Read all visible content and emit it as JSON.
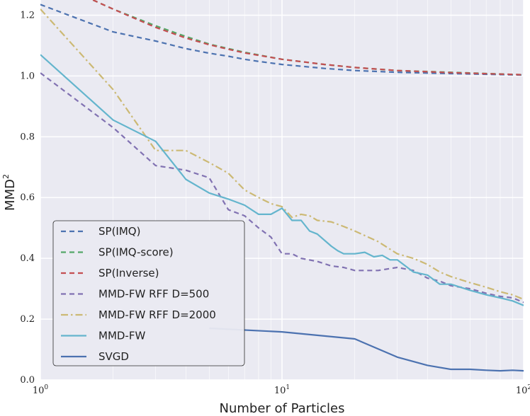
{
  "chart_data": {
    "type": "line",
    "title": "",
    "xlabel": "Number of Particles",
    "ylabel": "MMD",
    "ylabel_superscript": "2",
    "xscale": "log",
    "xlim": [
      1,
      100
    ],
    "ylim": [
      0.0,
      1.25
    ],
    "grid": true,
    "legend_position": "lower-left",
    "x_ticks": [
      {
        "value": 1,
        "base": "10",
        "exp": "0"
      },
      {
        "value": 10,
        "base": "10",
        "exp": "1"
      },
      {
        "value": 100,
        "base": "10",
        "exp": "2"
      }
    ],
    "y_ticks": [
      "0.0",
      "0.2",
      "0.4",
      "0.6",
      "0.8",
      "1.0",
      "1.2"
    ],
    "series": [
      {
        "name": "SP(IMQ)",
        "color": "#4c72b0",
        "dash": "dashed",
        "points": [
          [
            1,
            1.235
          ],
          [
            2,
            1.145
          ],
          [
            3,
            1.115
          ],
          [
            4,
            1.09
          ],
          [
            5,
            1.075
          ],
          [
            6,
            1.065
          ],
          [
            7,
            1.055
          ],
          [
            8,
            1.048
          ],
          [
            10,
            1.038
          ],
          [
            15,
            1.025
          ],
          [
            20,
            1.018
          ],
          [
            30,
            1.012
          ],
          [
            50,
            1.008
          ],
          [
            100,
            1.003
          ]
        ]
      },
      {
        "name": "SP(IMQ-score)",
        "color": "#55a868",
        "dash": "dashed",
        "points": [
          [
            1.65,
            1.25
          ],
          [
            2,
            1.22
          ],
          [
            3,
            1.165
          ],
          [
            4,
            1.13
          ],
          [
            5,
            1.105
          ],
          [
            6,
            1.09
          ],
          [
            7,
            1.078
          ],
          [
            10,
            1.055
          ],
          [
            15,
            1.038
          ],
          [
            20,
            1.028
          ],
          [
            30,
            1.018
          ],
          [
            50,
            1.012
          ],
          [
            100,
            1.004
          ]
        ]
      },
      {
        "name": "SP(Inverse)",
        "color": "#c44e52",
        "dash": "dashed",
        "points": [
          [
            1.65,
            1.25
          ],
          [
            2,
            1.22
          ],
          [
            3,
            1.16
          ],
          [
            4,
            1.125
          ],
          [
            5,
            1.103
          ],
          [
            6,
            1.088
          ],
          [
            7,
            1.076
          ],
          [
            10,
            1.055
          ],
          [
            15,
            1.038
          ],
          [
            20,
            1.028
          ],
          [
            30,
            1.018
          ],
          [
            50,
            1.011
          ],
          [
            100,
            1.004
          ]
        ]
      },
      {
        "name": "MMD-FW RFF D=500",
        "color": "#8172b2",
        "dash": "dashed",
        "points": [
          [
            1,
            1.01
          ],
          [
            2,
            0.83
          ],
          [
            3,
            0.705
          ],
          [
            4,
            0.69
          ],
          [
            5,
            0.665
          ],
          [
            6,
            0.56
          ],
          [
            7,
            0.54
          ],
          [
            8,
            0.5
          ],
          [
            9,
            0.47
          ],
          [
            10,
            0.415
          ],
          [
            11,
            0.415
          ],
          [
            12,
            0.4
          ],
          [
            14,
            0.39
          ],
          [
            16,
            0.375
          ],
          [
            18,
            0.37
          ],
          [
            20,
            0.36
          ],
          [
            25,
            0.36
          ],
          [
            30,
            0.37
          ],
          [
            35,
            0.36
          ],
          [
            40,
            0.335
          ],
          [
            45,
            0.325
          ],
          [
            50,
            0.31
          ],
          [
            60,
            0.3
          ],
          [
            70,
            0.285
          ],
          [
            80,
            0.275
          ],
          [
            90,
            0.27
          ],
          [
            100,
            0.255
          ]
        ]
      },
      {
        "name": "MMD-FW RFF D=2000",
        "color": "#ccb974",
        "dash": "dashdot",
        "points": [
          [
            1,
            1.22
          ],
          [
            2,
            0.955
          ],
          [
            3,
            0.755
          ],
          [
            4,
            0.755
          ],
          [
            5,
            0.715
          ],
          [
            6,
            0.68
          ],
          [
            7,
            0.625
          ],
          [
            8,
            0.6
          ],
          [
            9,
            0.58
          ],
          [
            10,
            0.57
          ],
          [
            11,
            0.535
          ],
          [
            12,
            0.545
          ],
          [
            13,
            0.54
          ],
          [
            14,
            0.525
          ],
          [
            16,
            0.52
          ],
          [
            18,
            0.505
          ],
          [
            20,
            0.49
          ],
          [
            25,
            0.455
          ],
          [
            30,
            0.415
          ],
          [
            35,
            0.4
          ],
          [
            40,
            0.38
          ],
          [
            45,
            0.355
          ],
          [
            50,
            0.34
          ],
          [
            60,
            0.32
          ],
          [
            70,
            0.305
          ],
          [
            80,
            0.29
          ],
          [
            90,
            0.28
          ],
          [
            100,
            0.265
          ]
        ]
      },
      {
        "name": "MMD-FW",
        "color": "#64b5cd",
        "dash": "solid",
        "points": [
          [
            1,
            1.07
          ],
          [
            2,
            0.855
          ],
          [
            3,
            0.785
          ],
          [
            4,
            0.66
          ],
          [
            5,
            0.615
          ],
          [
            6,
            0.595
          ],
          [
            7,
            0.575
          ],
          [
            8,
            0.545
          ],
          [
            9,
            0.545
          ],
          [
            10,
            0.565
          ],
          [
            11,
            0.525
          ],
          [
            12,
            0.525
          ],
          [
            13,
            0.49
          ],
          [
            14,
            0.48
          ],
          [
            16,
            0.44
          ],
          [
            17,
            0.425
          ],
          [
            18,
            0.415
          ],
          [
            20,
            0.415
          ],
          [
            22,
            0.42
          ],
          [
            24,
            0.405
          ],
          [
            26,
            0.41
          ],
          [
            28,
            0.395
          ],
          [
            30,
            0.395
          ],
          [
            35,
            0.355
          ],
          [
            40,
            0.345
          ],
          [
            45,
            0.315
          ],
          [
            50,
            0.315
          ],
          [
            60,
            0.295
          ],
          [
            70,
            0.28
          ],
          [
            80,
            0.27
          ],
          [
            90,
            0.26
          ],
          [
            100,
            0.245
          ]
        ]
      },
      {
        "name": "SVGD",
        "color": "#4c72b0",
        "dash": "solid",
        "points": [
          [
            5,
            0.17
          ],
          [
            10,
            0.158
          ],
          [
            20,
            0.135
          ],
          [
            30,
            0.075
          ],
          [
            40,
            0.048
          ],
          [
            50,
            0.035
          ],
          [
            60,
            0.035
          ],
          [
            70,
            0.032
          ],
          [
            80,
            0.03
          ],
          [
            90,
            0.032
          ],
          [
            100,
            0.03
          ]
        ]
      }
    ]
  }
}
